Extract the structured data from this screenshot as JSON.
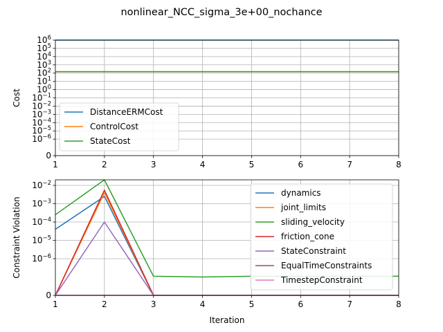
{
  "figure_title": "nonlinear_NCC_sigma_3e+00_nochance",
  "colors": {
    "blue": "#1f77b4",
    "orange": "#ff7f0e",
    "green": "#2ca02c",
    "red": "#d62728",
    "purple": "#9467bd",
    "brown": "#8c564b",
    "pink": "#e377c2",
    "grid": "#b0b0b0"
  },
  "chart_data": [
    {
      "type": "line",
      "ylabel": "Cost",
      "xlabel": "",
      "yscale": "symlog",
      "linthresh": 1e-07,
      "x": [
        1,
        2,
        3,
        4,
        5,
        6,
        7,
        8
      ],
      "xlim": [
        1,
        8
      ],
      "ylim": [
        0,
        1000000
      ],
      "xticks": [
        "1",
        "2",
        "3",
        "4",
        "5",
        "6",
        "7",
        "8"
      ],
      "yticks": [
        {
          "value": 0,
          "label": "0"
        },
        {
          "value": 1e-06,
          "base": "10",
          "exp": "−6"
        },
        {
          "value": 1e-05,
          "base": "10",
          "exp": "−5"
        },
        {
          "value": 0.0001,
          "base": "10",
          "exp": "−4"
        },
        {
          "value": 0.001,
          "base": "10",
          "exp": "−3"
        },
        {
          "value": 0.01,
          "base": "10",
          "exp": "−2"
        },
        {
          "value": 0.1,
          "base": "10",
          "exp": "−1"
        },
        {
          "value": 1,
          "base": "10",
          "exp": "0"
        },
        {
          "value": 10,
          "base": "10",
          "exp": "1"
        },
        {
          "value": 100,
          "base": "10",
          "exp": "2"
        },
        {
          "value": 1000,
          "base": "10",
          "exp": "3"
        },
        {
          "value": 10000,
          "base": "10",
          "exp": "4"
        },
        {
          "value": 100000,
          "base": "10",
          "exp": "5"
        },
        {
          "value": 1000000,
          "base": "10",
          "exp": "6"
        }
      ],
      "legend_position": "lower-left",
      "series": [
        {
          "name": "DistanceERMCost",
          "color": "#1f77b4",
          "values": [
            990000,
            990000,
            990000,
            990000,
            990000,
            990000,
            990000,
            990000
          ]
        },
        {
          "name": "ControlCost",
          "color": "#ff7f0e",
          "values": [
            150,
            150,
            150,
            150,
            150,
            150,
            150,
            150
          ]
        },
        {
          "name": "StateCost",
          "color": "#2ca02c",
          "values": [
            150,
            150,
            150,
            150,
            150,
            150,
            150,
            150
          ]
        }
      ]
    },
    {
      "type": "line",
      "ylabel": "Constraint Violation",
      "xlabel": "Iteration",
      "yscale": "symlog",
      "linthresh": 1e-07,
      "x": [
        1,
        2,
        3,
        4,
        5,
        6,
        7,
        8
      ],
      "xlim": [
        1,
        8
      ],
      "ylim": [
        0,
        0.02
      ],
      "xticks": [
        "1",
        "2",
        "3",
        "4",
        "5",
        "6",
        "7",
        "8"
      ],
      "yticks": [
        {
          "value": 0,
          "label": "0"
        },
        {
          "value": 1e-06,
          "base": "10",
          "exp": "−6"
        },
        {
          "value": 1e-05,
          "base": "10",
          "exp": "−5"
        },
        {
          "value": 0.0001,
          "base": "10",
          "exp": "−4"
        },
        {
          "value": 0.001,
          "base": "10",
          "exp": "−3"
        },
        {
          "value": 0.01,
          "base": "10",
          "exp": "−2"
        }
      ],
      "legend_position": "upper-right",
      "series": [
        {
          "name": "dynamics",
          "color": "#1f77b4",
          "values": [
            4e-05,
            0.0025,
            0,
            0,
            0,
            0,
            0,
            0
          ]
        },
        {
          "name": "joint_limits",
          "color": "#ff7f0e",
          "values": [
            0,
            0.004,
            0,
            0,
            0,
            0,
            0,
            0
          ]
        },
        {
          "name": "sliding_velocity",
          "color": "#2ca02c",
          "values": [
            0.00025,
            0.02,
            1.1e-07,
            1e-07,
            1.1e-07,
            1.1e-07,
            1.1e-07,
            1.1e-07
          ]
        },
        {
          "name": "friction_cone",
          "color": "#d62728",
          "values": [
            0,
            0.0055,
            0,
            0,
            0,
            0,
            0,
            0
          ]
        },
        {
          "name": "StateConstraint",
          "color": "#9467bd",
          "values": [
            0,
            0.0001,
            0,
            0,
            0,
            0,
            0,
            0
          ]
        },
        {
          "name": "EqualTimeConstraints",
          "color": "#8c564b",
          "values": [
            0,
            0,
            0,
            0,
            0,
            0,
            0,
            0
          ]
        },
        {
          "name": "TimestepConstraint",
          "color": "#e377c2",
          "values": [
            0,
            0,
            0,
            0,
            0,
            0,
            0,
            0
          ]
        }
      ]
    }
  ]
}
